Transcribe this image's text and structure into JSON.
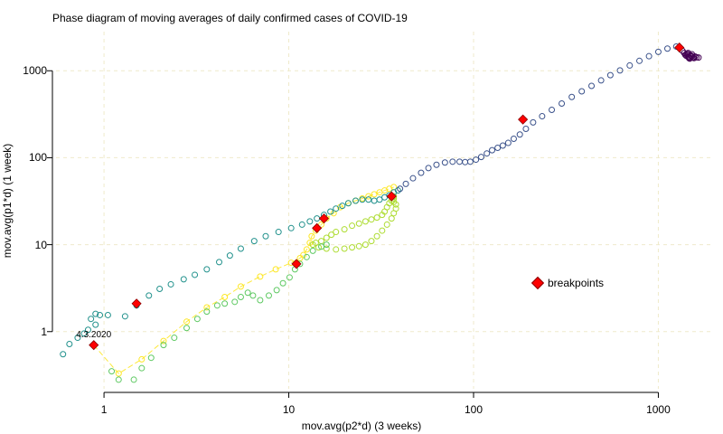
{
  "chart_data": {
    "type": "scatter",
    "title": "Phase diagram of moving averages of daily confirmed cases of COVID-19",
    "xlabel": "mov.avg(p2*d) (3 weeks)",
    "ylabel": "mov.avg(p1*d) (1 week)",
    "x_scale": "log",
    "y_scale": "log",
    "xlim": [
      0.55,
      2000
    ],
    "ylim": [
      0.22,
      2500
    ],
    "x_ticks": [
      {
        "value": 1,
        "label": "1"
      },
      {
        "value": 10,
        "label": "10"
      },
      {
        "value": 100,
        "label": "100"
      },
      {
        "value": 1000,
        "label": "1000"
      }
    ],
    "y_ticks": [
      {
        "value": 1,
        "label": "1"
      },
      {
        "value": 10,
        "label": "10"
      },
      {
        "value": 100,
        "label": "100"
      },
      {
        "value": 1000,
        "label": "1000"
      }
    ],
    "grid": true,
    "legend_position": "right",
    "annotation": {
      "text": "4.3.2020",
      "x": 0.88,
      "y": 0.7
    },
    "series": [
      {
        "color": "#fde725",
        "points": [
          [
            0.88,
            0.7
          ],
          [
            1.2,
            0.33
          ],
          [
            1.6,
            0.48
          ],
          [
            2.1,
            0.78
          ],
          [
            2.8,
            1.3
          ],
          [
            3.6,
            1.9
          ],
          [
            4.5,
            2.5
          ],
          [
            5.5,
            3.3
          ],
          [
            7,
            4.3
          ],
          [
            8.5,
            5.2
          ],
          [
            10.3,
            6.2
          ],
          [
            11.5,
            7.0
          ],
          [
            12,
            7.6
          ],
          [
            12.5,
            8.8
          ],
          [
            13,
            10.5
          ],
          [
            13.3,
            12.5
          ],
          [
            14,
            14.5
          ],
          [
            15,
            17
          ],
          [
            16,
            20
          ],
          [
            17.5,
            23
          ],
          [
            19,
            27
          ],
          [
            21,
            30
          ],
          [
            23,
            32
          ],
          [
            25,
            34
          ],
          [
            27,
            36
          ],
          [
            29,
            38
          ],
          [
            31,
            40
          ],
          [
            33,
            42
          ],
          [
            35,
            44
          ],
          [
            37,
            46
          ]
        ],
        "line": true
      },
      {
        "color": "#addc30",
        "points": [
          [
            37,
            36
          ],
          [
            37,
            34
          ],
          [
            36,
            32
          ],
          [
            35,
            30
          ],
          [
            34,
            27
          ],
          [
            33,
            24
          ],
          [
            32,
            22
          ],
          [
            30,
            20.5
          ],
          [
            28,
            19.5
          ],
          [
            26,
            18.5
          ],
          [
            24,
            17.5
          ],
          [
            22,
            16.5
          ],
          [
            20,
            15
          ],
          [
            18,
            14
          ],
          [
            17,
            13
          ],
          [
            16,
            12
          ],
          [
            15,
            11
          ],
          [
            14,
            10.5
          ],
          [
            13.5,
            10
          ],
          [
            14.5,
            9.3
          ],
          [
            16,
            9
          ],
          [
            18,
            8.8
          ],
          [
            20,
            9.0
          ],
          [
            22,
            9.3
          ],
          [
            24,
            9.6
          ],
          [
            26,
            10.0
          ],
          [
            28,
            11.0
          ],
          [
            30,
            12.5
          ],
          [
            32,
            14.5
          ],
          [
            34,
            17
          ],
          [
            36,
            20
          ],
          [
            37,
            23
          ],
          [
            38,
            26
          ],
          [
            38,
            29
          ],
          [
            37,
            31
          ]
        ]
      },
      {
        "color": "#5ec962",
        "points": [
          [
            1.1,
            0.35
          ],
          [
            1.2,
            0.28
          ],
          [
            1.45,
            0.28
          ],
          [
            1.6,
            0.38
          ],
          [
            1.8,
            0.5
          ],
          [
            2.1,
            0.7
          ],
          [
            2.4,
            0.85
          ],
          [
            2.8,
            1.1
          ],
          [
            3.2,
            1.4
          ],
          [
            3.6,
            1.7
          ],
          [
            4.1,
            2.0
          ],
          [
            4.5,
            2.1
          ],
          [
            5.1,
            2.2
          ],
          [
            5.5,
            2.5
          ],
          [
            6.0,
            2.8
          ],
          [
            6.4,
            2.6
          ],
          [
            7.0,
            2.3
          ],
          [
            7.8,
            2.6
          ],
          [
            8.6,
            3.0
          ],
          [
            9.3,
            3.6
          ],
          [
            10.1,
            4.2
          ],
          [
            10.8,
            5.2
          ],
          [
            11.5,
            6.0
          ],
          [
            12.5,
            7.2
          ],
          [
            13.5,
            8.5
          ],
          [
            15,
            9.5
          ],
          [
            16,
            10
          ]
        ]
      },
      {
        "color": "#21918c",
        "points": [
          [
            0.6,
            0.55
          ],
          [
            0.65,
            0.72
          ],
          [
            0.72,
            0.85
          ],
          [
            0.78,
            0.95
          ],
          [
            0.82,
            1.05
          ],
          [
            0.9,
            1.2
          ],
          [
            0.95,
            1.55
          ],
          [
            0.9,
            1.6
          ],
          [
            0.85,
            1.4
          ],
          [
            1.05,
            1.55
          ],
          [
            1.3,
            1.5
          ],
          [
            1.5,
            2.0
          ],
          [
            1.75,
            2.6
          ],
          [
            2.0,
            3.1
          ],
          [
            2.3,
            3.5
          ],
          [
            2.7,
            4.0
          ],
          [
            3.1,
            4.5
          ],
          [
            3.6,
            5.2
          ],
          [
            4.2,
            6.3
          ],
          [
            4.8,
            7.5
          ],
          [
            5.5,
            9.0
          ],
          [
            6.5,
            11
          ],
          [
            7.5,
            12.5
          ],
          [
            8.8,
            14
          ],
          [
            10.3,
            15.5
          ],
          [
            11.8,
            17
          ],
          [
            13,
            18.5
          ],
          [
            14.2,
            20
          ],
          [
            15.5,
            22
          ],
          [
            16.8,
            24
          ],
          [
            18,
            26
          ],
          [
            19.5,
            28
          ],
          [
            21,
            30
          ],
          [
            23,
            32
          ],
          [
            25,
            33
          ],
          [
            27,
            33
          ],
          [
            29,
            32
          ],
          [
            31,
            33
          ],
          [
            33,
            35
          ],
          [
            35,
            37
          ],
          [
            37,
            40
          ],
          [
            39,
            42
          ]
        ]
      },
      {
        "color": "#3b528b",
        "points": [
          [
            40,
            44
          ],
          [
            43,
            50
          ],
          [
            47,
            58
          ],
          [
            52,
            67
          ],
          [
            57,
            76
          ],
          [
            63,
            83
          ],
          [
            70,
            88
          ],
          [
            77,
            90
          ],
          [
            84,
            90
          ],
          [
            90,
            89
          ],
          [
            96,
            90
          ],
          [
            103,
            95
          ],
          [
            110,
            102
          ],
          [
            118,
            112
          ],
          [
            126,
            122
          ],
          [
            135,
            130
          ],
          [
            144,
            138
          ],
          [
            154,
            148
          ],
          [
            165,
            165
          ],
          [
            178,
            185
          ],
          [
            192,
            215
          ],
          [
            210,
            255
          ],
          [
            235,
            300
          ],
          [
            265,
            355
          ],
          [
            300,
            420
          ],
          [
            340,
            500
          ],
          [
            385,
            580
          ],
          [
            435,
            670
          ],
          [
            490,
            775
          ],
          [
            550,
            890
          ],
          [
            620,
            1010
          ],
          [
            700,
            1150
          ],
          [
            790,
            1300
          ],
          [
            890,
            1470
          ],
          [
            1000,
            1650
          ],
          [
            1120,
            1800
          ],
          [
            1250,
            1900
          ]
        ]
      },
      {
        "color": "#440154",
        "points": [
          [
            1350,
            1700
          ],
          [
            1420,
            1550
          ],
          [
            1460,
            1450
          ],
          [
            1500,
            1480
          ],
          [
            1450,
            1600
          ],
          [
            1400,
            1520
          ],
          [
            1480,
            1380
          ],
          [
            1540,
            1420
          ],
          [
            1580,
            1460
          ],
          [
            1520,
            1550
          ],
          [
            1460,
            1420
          ],
          [
            1420,
            1480
          ],
          [
            1500,
            1500
          ],
          [
            1560,
            1400
          ],
          [
            1610,
            1430
          ],
          [
            1650,
            1420
          ],
          [
            1380,
            1600
          ],
          [
            1440,
            1560
          ],
          [
            1520,
            1460
          ],
          [
            1470,
            1390
          ]
        ]
      }
    ],
    "breakpoints": [
      [
        0.88,
        0.7
      ],
      [
        1.5,
        2.1
      ],
      [
        11,
        6
      ],
      [
        14.2,
        15.5
      ],
      [
        15.5,
        20
      ],
      [
        36,
        36
      ],
      [
        185,
        275
      ],
      [
        1300,
        1850
      ]
    ],
    "legend": [
      {
        "label": "breakpoints",
        "color": "#ff0000",
        "marker": "diamond"
      }
    ]
  }
}
